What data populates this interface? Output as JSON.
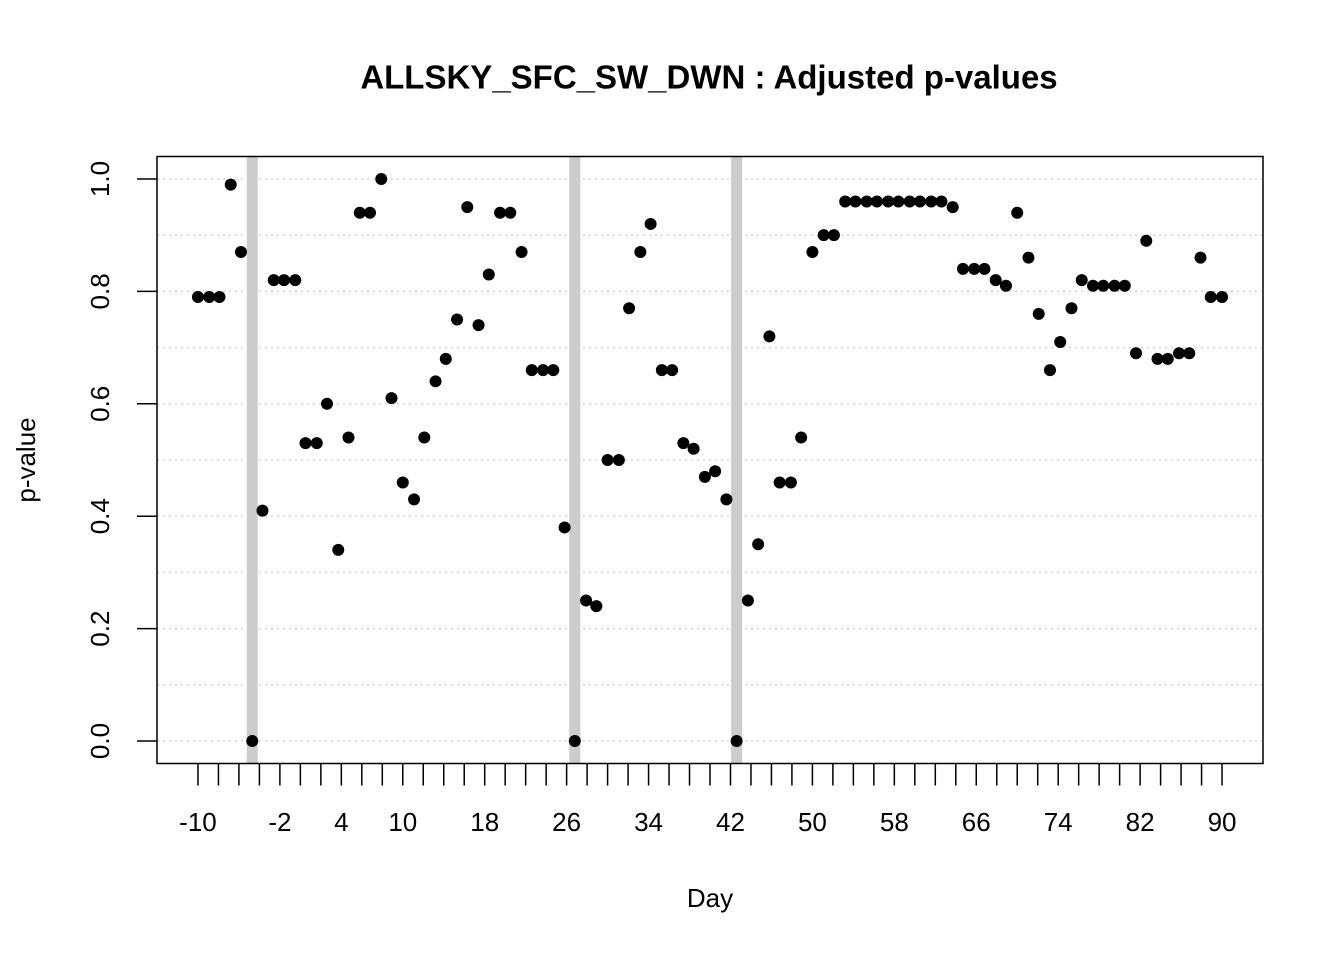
{
  "chart_data": {
    "type": "scatter",
    "title": "ALLSKY_SFC_SW_DWN : Adjusted p-values",
    "xlabel": "Day",
    "ylabel": "p-value",
    "x": [
      -10.0,
      -8.9,
      -7.9,
      -6.8,
      -5.8,
      -4.7,
      -3.7,
      -2.6,
      -1.6,
      -0.5,
      0.5,
      1.6,
      2.6,
      3.7,
      4.7,
      5.8,
      6.8,
      7.9,
      8.9,
      10.0,
      11.1,
      12.1,
      13.2,
      14.2,
      15.3,
      16.3,
      17.4,
      18.4,
      19.5,
      20.5,
      21.6,
      22.6,
      23.7,
      24.7,
      25.8,
      26.8,
      27.9,
      28.9,
      30.0,
      31.1,
      32.1,
      33.2,
      34.2,
      35.3,
      36.3,
      37.4,
      38.4,
      39.5,
      40.5,
      41.6,
      42.6,
      43.7,
      44.7,
      45.8,
      46.8,
      47.9,
      48.9,
      50.0,
      51.1,
      52.1,
      53.2,
      54.2,
      55.3,
      56.3,
      57.4,
      58.4,
      59.5,
      60.5,
      61.6,
      62.6,
      63.7,
      64.7,
      65.8,
      66.8,
      67.9,
      68.9,
      70.0,
      71.1,
      72.1,
      73.2,
      74.2,
      75.3,
      76.3,
      77.4,
      78.4,
      79.5,
      80.5,
      81.6,
      82.6,
      83.7,
      84.7,
      85.8,
      86.8,
      87.9,
      88.9,
      90.0
    ],
    "values": [
      0.79,
      0.79,
      0.79,
      0.99,
      0.87,
      0.0,
      0.41,
      0.82,
      0.82,
      0.82,
      0.53,
      0.53,
      0.6,
      0.34,
      0.54,
      0.94,
      0.94,
      1.0,
      0.61,
      0.46,
      0.43,
      0.54,
      0.64,
      0.68,
      0.75,
      0.95,
      0.74,
      0.83,
      0.94,
      0.94,
      0.87,
      0.66,
      0.66,
      0.66,
      0.38,
      0.0,
      0.25,
      0.24,
      0.5,
      0.5,
      0.77,
      0.87,
      0.92,
      0.66,
      0.66,
      0.53,
      0.52,
      0.47,
      0.48,
      0.43,
      0.0,
      0.25,
      0.35,
      0.72,
      0.46,
      0.46,
      0.54,
      0.87,
      0.9,
      0.9,
      0.96,
      0.96,
      0.96,
      0.96,
      0.96,
      0.96,
      0.96,
      0.96,
      0.96,
      0.96,
      0.95,
      0.84,
      0.84,
      0.84,
      0.82,
      0.81,
      0.94,
      0.86,
      0.76,
      0.66,
      0.71,
      0.77,
      0.82,
      0.81,
      0.81,
      0.81,
      0.81,
      0.69,
      0.89,
      0.68,
      0.68,
      0.69,
      0.69,
      0.86,
      0.79,
      0.79
    ],
    "color": "#000000",
    "vlines": [
      -4.7,
      26.8,
      42.6
    ],
    "vline_color": "#cccccc",
    "xlim": [
      -14,
      94
    ],
    "ylim": [
      -0.04,
      1.04
    ],
    "xticks": [
      -10,
      -2,
      4,
      10,
      18,
      26,
      34,
      42,
      50,
      58,
      66,
      74,
      82,
      90
    ],
    "xtick_marks": [
      -10,
      -8,
      -6,
      -4,
      -2,
      0,
      2,
      4,
      6,
      8,
      10,
      12,
      14,
      16,
      18,
      20,
      22,
      24,
      26,
      28,
      30,
      32,
      34,
      36,
      38,
      40,
      42,
      44,
      46,
      48,
      50,
      52,
      54,
      56,
      58,
      60,
      62,
      64,
      66,
      68,
      70,
      72,
      74,
      76,
      78,
      80,
      82,
      84,
      86,
      88,
      90
    ],
    "yticks": [
      {
        "value": 0,
        "label": "0.0"
      },
      {
        "value": 0.2,
        "label": "0.2"
      },
      {
        "value": 0.4,
        "label": "0.4"
      },
      {
        "value": 0.6,
        "label": "0.6"
      },
      {
        "value": 0.8,
        "label": "0.8"
      },
      {
        "value": 1,
        "label": "1.0"
      }
    ],
    "ygrid": [
      0,
      0.1,
      0.2,
      0.3,
      0.4,
      0.5,
      0.6,
      0.7,
      0.8,
      0.9,
      1.0
    ],
    "grid": true
  }
}
